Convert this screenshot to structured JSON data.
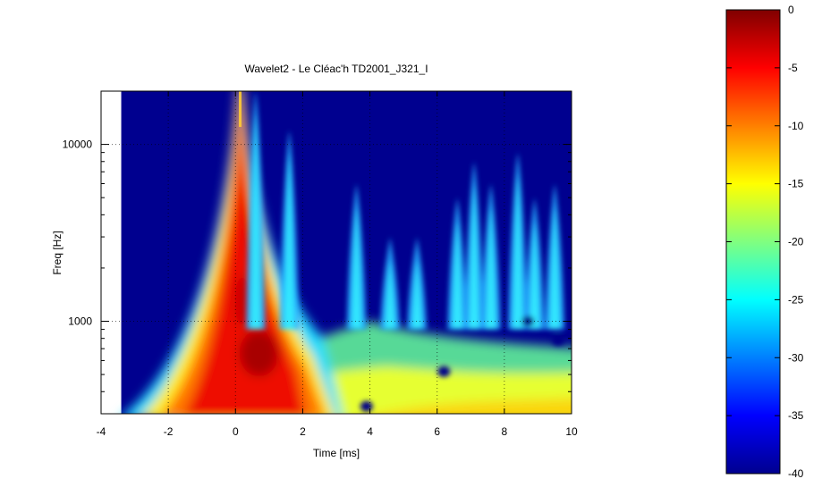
{
  "chart_data": {
    "type": "heatmap",
    "title": "Wavelet2 - Le Cléac'h TD2001_J321_I",
    "xlabel": "Time [ms]",
    "ylabel": "Freq [Hz]",
    "xlim": [
      -4,
      10
    ],
    "ylim": [
      300,
      20000
    ],
    "yscale": "log",
    "x_ticks": [
      -4,
      -2,
      0,
      2,
      4,
      6,
      8,
      10
    ],
    "y_ticks": [
      1000,
      10000
    ],
    "data_start_x": -3.4,
    "grid": true,
    "colorbar": {
      "range": [
        -40,
        0
      ],
      "ticks": [
        0,
        -5,
        -10,
        -15,
        -20,
        -25,
        -30,
        -35,
        -40
      ],
      "colormap": "jet"
    },
    "features": {
      "impulse_time": 0.1,
      "plumes": [
        {
          "t": 0.6,
          "f": 20000
        },
        {
          "t": 1.6,
          "f": 12000
        },
        {
          "t": 3.6,
          "f": 6000
        },
        {
          "t": 4.6,
          "f": 3000
        },
        {
          "t": 5.4,
          "f": 3000
        },
        {
          "t": 6.6,
          "f": 5000
        },
        {
          "t": 7.1,
          "f": 8000
        },
        {
          "t": 7.6,
          "f": 6000
        },
        {
          "t": 8.4,
          "f": 9000
        },
        {
          "t": 8.9,
          "f": 5000
        },
        {
          "t": 9.5,
          "f": 6000
        }
      ],
      "minima": [
        {
          "t": 3.9,
          "f": 330
        },
        {
          "t": 6.2,
          "f": 520
        },
        {
          "t": 8.7,
          "f": 1000
        },
        {
          "t": 9.6,
          "f": 780
        }
      ]
    }
  }
}
